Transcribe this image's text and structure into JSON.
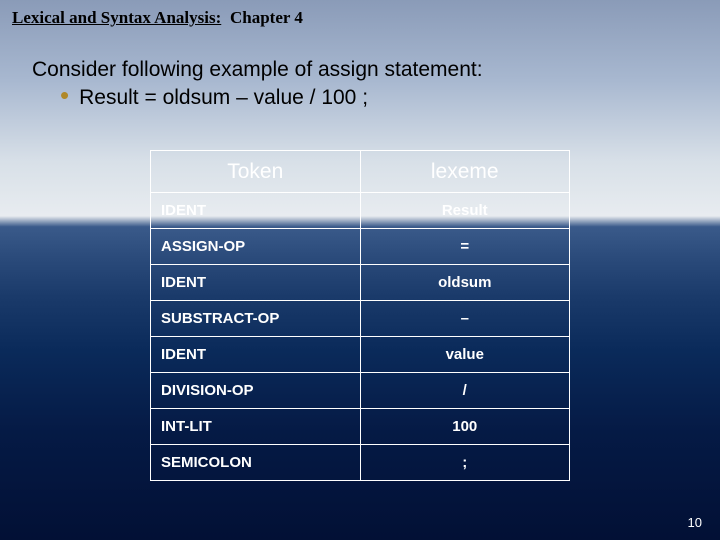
{
  "header": {
    "title": "Lexical and Syntax Analysis:",
    "chapter": "Chapter 4"
  },
  "intro": {
    "line1": "Consider following example of assign statement:",
    "bullet_text": "Result = oldsum – value / 100 ;"
  },
  "table": {
    "columns": [
      "Token",
      "lexeme"
    ],
    "col_widths_pct": [
      50,
      50
    ],
    "header_fontsize": 21,
    "cell_fontsize": 15,
    "border_color": "#ffffff",
    "text_color": "#ffffff",
    "token_align": "left",
    "lexeme_align": "center",
    "rows": [
      {
        "token": "IDENT",
        "lexeme": "Result"
      },
      {
        "token": "ASSIGN-OP",
        "lexeme": "="
      },
      {
        "token": "IDENT",
        "lexeme": "oldsum"
      },
      {
        "token": "SUBSTRACT-OP",
        "lexeme": "–"
      },
      {
        "token": "IDENT",
        "lexeme": "value"
      },
      {
        "token": "DIVISION-OP",
        "lexeme": "/"
      },
      {
        "token": "INT-LIT",
        "lexeme": "100"
      },
      {
        "token": "SEMICOLON",
        "lexeme": ";"
      }
    ]
  },
  "page_number": "10",
  "colors": {
    "bullet": "#b08828",
    "body_text_top": "#000000",
    "table_text": "#ffffff"
  }
}
